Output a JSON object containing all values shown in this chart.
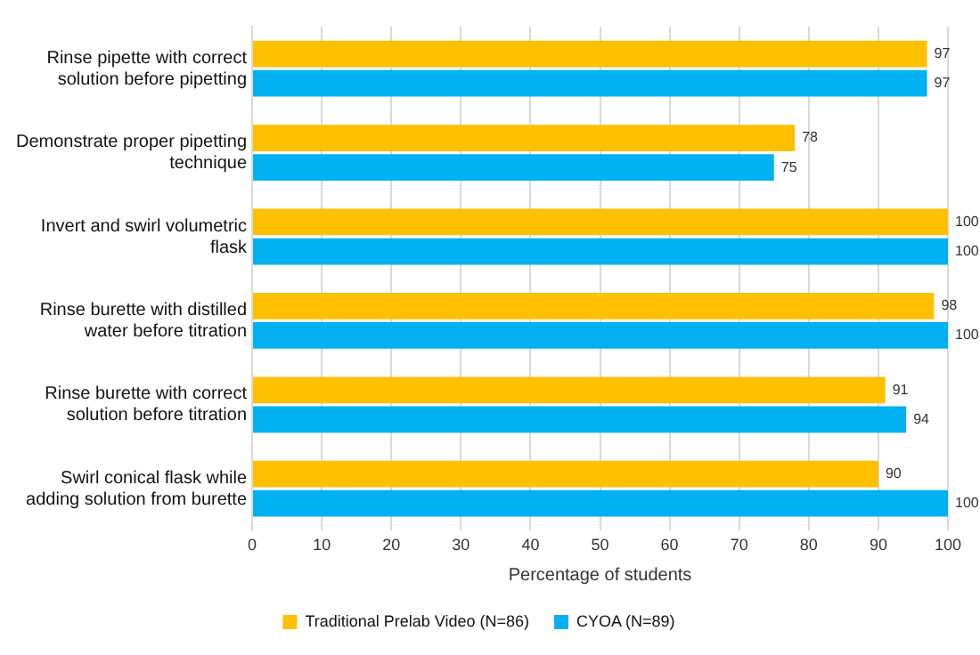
{
  "chart_data": {
    "type": "bar",
    "orientation": "horizontal",
    "xlabel": "Percentage of students",
    "categories": [
      "Rinse pipette with correct solution before pipetting",
      "Demonstrate proper pipetting technique",
      "Invert and swirl volumetric flask",
      "Rinse burette with distilled water before titration",
      "Rinse burette with correct solution before titration",
      "Swirl conical flask while adding solution from burette"
    ],
    "series": [
      {
        "name": "Traditional Prelab Video (N=86)",
        "color": "#ffc000",
        "values": [
          97,
          78,
          100,
          98,
          91,
          90
        ]
      },
      {
        "name": "CYOA (N=89)",
        "color": "#00b0f0",
        "values": [
          97,
          75,
          100,
          100,
          94,
          100
        ]
      }
    ],
    "xlim": [
      0,
      100
    ],
    "xticks": [
      0,
      10,
      20,
      30,
      40,
      50,
      60,
      70,
      80,
      90,
      100
    ],
    "grid": "x",
    "legend": "bottom",
    "data_labels": true
  }
}
